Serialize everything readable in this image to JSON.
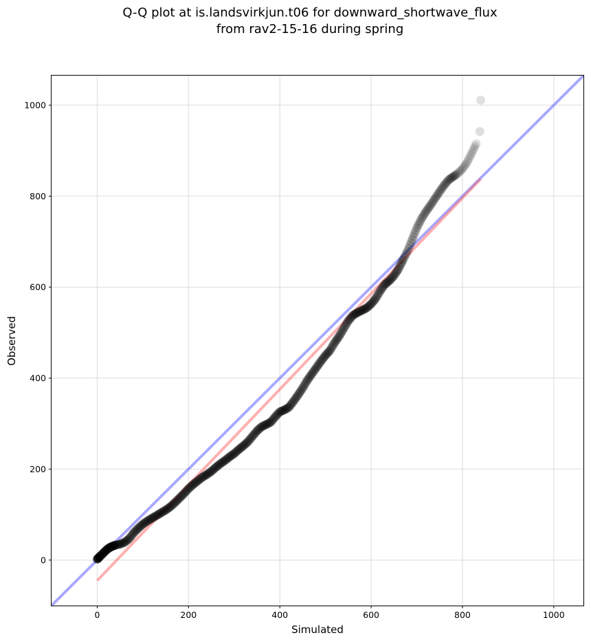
{
  "chart_data": {
    "type": "scatter",
    "title_line1": "Q-Q plot at is.landsvirkjun.t06 for downward_shortwave_flux",
    "title_line2": "from rav2-15-16 during spring",
    "xlabel": "Simulated",
    "ylabel": "Observed",
    "xlim": [
      -100,
      1065
    ],
    "ylim": [
      -100,
      1065
    ],
    "xticks": [
      0,
      200,
      400,
      600,
      800,
      1000
    ],
    "yticks": [
      0,
      200,
      400,
      600,
      800,
      1000
    ],
    "grid": true,
    "identity_line": {
      "color": "#4040ff",
      "points": [
        [
          -100,
          -100
        ],
        [
          1065,
          1065
        ]
      ]
    },
    "fit_line": {
      "color": "#ff5050",
      "points": [
        [
          0,
          -45
        ],
        [
          840,
          838
        ]
      ]
    },
    "points_color": "#000000",
    "quantiles": [
      [
        0,
        2
      ],
      [
        2,
        4
      ],
      [
        5,
        7
      ],
      [
        10,
        12
      ],
      [
        15,
        17
      ],
      [
        20,
        22
      ],
      [
        25,
        26
      ],
      [
        30,
        29
      ],
      [
        35,
        31
      ],
      [
        40,
        33
      ],
      [
        50,
        35
      ],
      [
        60,
        39
      ],
      [
        70,
        47
      ],
      [
        80,
        60
      ],
      [
        90,
        70
      ],
      [
        100,
        79
      ],
      [
        110,
        86
      ],
      [
        120,
        92
      ],
      [
        130,
        98
      ],
      [
        140,
        104
      ],
      [
        150,
        110
      ],
      [
        160,
        117
      ],
      [
        170,
        126
      ],
      [
        180,
        136
      ],
      [
        190,
        146
      ],
      [
        200,
        157
      ],
      [
        210,
        166
      ],
      [
        220,
        174
      ],
      [
        230,
        182
      ],
      [
        240,
        188
      ],
      [
        250,
        195
      ],
      [
        260,
        204
      ],
      [
        270,
        212
      ],
      [
        280,
        219
      ],
      [
        290,
        227
      ],
      [
        300,
        234
      ],
      [
        310,
        243
      ],
      [
        320,
        251
      ],
      [
        330,
        260
      ],
      [
        340,
        272
      ],
      [
        350,
        284
      ],
      [
        360,
        293
      ],
      [
        370,
        298
      ],
      [
        380,
        303
      ],
      [
        390,
        315
      ],
      [
        400,
        326
      ],
      [
        410,
        330
      ],
      [
        420,
        336
      ],
      [
        430,
        349
      ],
      [
        440,
        363
      ],
      [
        450,
        378
      ],
      [
        460,
        395
      ],
      [
        470,
        409
      ],
      [
        480,
        423
      ],
      [
        490,
        437
      ],
      [
        500,
        450
      ],
      [
        510,
        461
      ],
      [
        520,
        478
      ],
      [
        530,
        492
      ],
      [
        540,
        509
      ],
      [
        550,
        526
      ],
      [
        560,
        538
      ],
      [
        570,
        544
      ],
      [
        580,
        549
      ],
      [
        590,
        554
      ],
      [
        600,
        563
      ],
      [
        610,
        575
      ],
      [
        620,
        592
      ],
      [
        630,
        606
      ],
      [
        640,
        614
      ],
      [
        650,
        625
      ],
      [
        660,
        640
      ],
      [
        670,
        660
      ],
      [
        680,
        680
      ],
      [
        690,
        705
      ],
      [
        700,
        730
      ],
      [
        710,
        750
      ],
      [
        720,
        766
      ],
      [
        730,
        780
      ],
      [
        740,
        795
      ],
      [
        750,
        810
      ],
      [
        760,
        824
      ],
      [
        770,
        836
      ],
      [
        780,
        843
      ],
      [
        790,
        850
      ],
      [
        800,
        860
      ],
      [
        810,
        874
      ],
      [
        820,
        894
      ],
      [
        830,
        915
      ],
      [
        838,
        942
      ],
      [
        840,
        1011
      ]
    ]
  }
}
